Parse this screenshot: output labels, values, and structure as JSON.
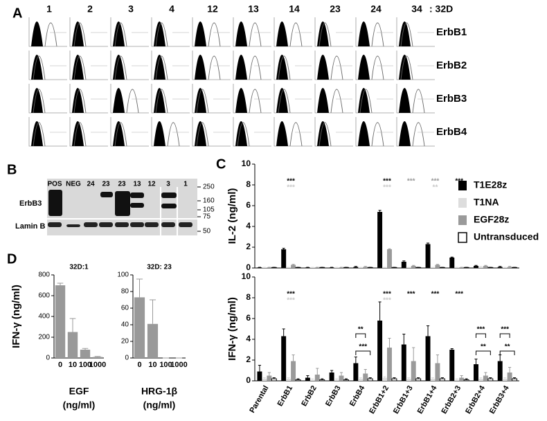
{
  "panel_labels": [
    "A",
    "B",
    "C",
    "D"
  ],
  "flow": {
    "columns": [
      "1",
      "2",
      "3",
      "4",
      "12",
      "13",
      "14",
      "23",
      "24",
      "34"
    ],
    "suffix": ": 32D",
    "rows": [
      "ErbB1",
      "ErbB2",
      "ErbB3",
      "ErbB4"
    ]
  },
  "blot": {
    "lanes": [
      "POS",
      "NEG",
      "24",
      "23",
      "23",
      "13",
      "12",
      "3",
      "1"
    ],
    "rows": [
      "ErbB3",
      "Lamin B"
    ],
    "markers": [
      250,
      160,
      105,
      75,
      50
    ]
  },
  "chart_data": [
    {
      "type": "bar",
      "ylabel": "IL-2 (ng/ml)",
      "ylim": [
        0,
        10
      ],
      "yticks": [
        0,
        2,
        4,
        6,
        8,
        10
      ],
      "series": [
        {
          "name": "T1E28z",
          "color": "#000000",
          "values": [
            0.05,
            1.8,
            0.05,
            0.05,
            0.1,
            5.4,
            0.6,
            2.3,
            1.0,
            0.2,
            0.1
          ],
          "errors": [
            0.02,
            0.1,
            0.02,
            0.02,
            0.05,
            0.15,
            0.08,
            0.1,
            0.05,
            0.05,
            0.05
          ]
        },
        {
          "name": "T1NA",
          "color": "#dddddd",
          "values": [
            0.05,
            0.05,
            0.05,
            0.05,
            0.05,
            0.05,
            0.05,
            0.05,
            0.05,
            0.1,
            0.05
          ],
          "errors": [
            0.02,
            0.02,
            0.02,
            0.02,
            0.02,
            0.02,
            0.02,
            0.02,
            0.02,
            0.05,
            0.02
          ]
        },
        {
          "name": "EGF28z",
          "color": "#9a9a9a",
          "values": [
            0.05,
            0.3,
            0.05,
            0.05,
            0.1,
            1.8,
            0.2,
            0.3,
            0.05,
            0.2,
            0.1
          ],
          "errors": [
            0.02,
            0.05,
            0.02,
            0.02,
            0.05,
            0.05,
            0.05,
            0.05,
            0.02,
            0.05,
            0.05
          ]
        },
        {
          "name": "Untransduced",
          "color": "#ffffff",
          "values": [
            0.05,
            0.05,
            0.05,
            0.05,
            0.05,
            0.05,
            0.05,
            0.05,
            0.05,
            0.05,
            0.05
          ],
          "errors": [
            0.02,
            0.02,
            0.02,
            0.02,
            0.02,
            0.02,
            0.02,
            0.02,
            0.02,
            0.02,
            0.02
          ]
        }
      ],
      "significance": [
        {
          "at": 1,
          "series": 0,
          "label": "***"
        },
        {
          "at": 1,
          "series": 1,
          "label": "***"
        },
        {
          "at": 5,
          "series": 0,
          "label": "***"
        },
        {
          "at": 5,
          "series": 1,
          "label": "***"
        },
        {
          "at": 6,
          "series": 2,
          "label": "***"
        },
        {
          "at": 7,
          "series": 2,
          "label": "***"
        },
        {
          "at": 7,
          "series": 1,
          "label": "**"
        },
        {
          "at": 8,
          "series": 0,
          "label": "***"
        }
      ]
    },
    {
      "type": "bar",
      "ylabel": "IFN-γ (ng/ml)",
      "ylim": [
        0,
        10
      ],
      "yticks": [
        0,
        2,
        4,
        6,
        8,
        10
      ],
      "categories": [
        "Parental",
        "ErbB1",
        "ErbB2",
        "ErbB3",
        "ErbB4",
        "ErbB1+2",
        "ErbB1+3",
        "ErbB1+4",
        "ErbB2+3",
        "ErbB2+4",
        "ErbB3+4"
      ],
      "series": [
        {
          "color": "#000000",
          "values": [
            0.9,
            4.3,
            0.3,
            0.8,
            1.7,
            5.8,
            3.5,
            4.3,
            3.0,
            1.6,
            1.9
          ],
          "errors": [
            0.6,
            0.7,
            0.2,
            0.2,
            0.6,
            1.8,
            1.0,
            1.0,
            0.1,
            0.5,
            0.6
          ]
        },
        {
          "color": "#dddddd",
          "values": [
            0.2,
            0.2,
            0.1,
            0.1,
            0.2,
            0.3,
            0.2,
            0.2,
            0.1,
            0.2,
            0.2
          ],
          "errors": [
            0.1,
            0.1,
            0.1,
            0.1,
            0.1,
            0.1,
            0.1,
            0.1,
            0.1,
            0.1,
            0.1
          ]
        },
        {
          "color": "#9a9a9a",
          "values": [
            0.5,
            1.9,
            0.6,
            0.5,
            0.7,
            3.2,
            1.9,
            1.7,
            0.3,
            0.5,
            0.8
          ],
          "errors": [
            0.3,
            0.6,
            0.6,
            0.3,
            0.4,
            0.9,
            1.3,
            0.8,
            0.2,
            0.3,
            0.5
          ]
        },
        {
          "color": "#ffffff",
          "values": [
            0.2,
            0.1,
            0.1,
            0.1,
            0.2,
            0.2,
            0.2,
            0.2,
            0.1,
            0.2,
            0.2
          ],
          "errors": [
            0.1,
            0.1,
            0.1,
            0.1,
            0.1,
            0.1,
            0.1,
            0.1,
            0.1,
            0.1,
            0.1
          ]
        }
      ],
      "significance": [
        {
          "at": 1,
          "series": 0,
          "label": "***"
        },
        {
          "at": 1,
          "series": 1,
          "label": "***"
        },
        {
          "at": 5,
          "series": 0,
          "label": "***"
        },
        {
          "at": 5,
          "series": 1,
          "label": "***"
        },
        {
          "at": 6,
          "series": 0,
          "label": "***"
        },
        {
          "at": 7,
          "series": 0,
          "label": "***"
        },
        {
          "at": 8,
          "series": 0,
          "label": "***"
        }
      ],
      "brackets": [
        {
          "at": 4,
          "label": "**"
        },
        {
          "at": 4,
          "label": "***"
        },
        {
          "at": 9,
          "label": "***"
        },
        {
          "at": 9,
          "label": "**"
        },
        {
          "at": 10,
          "label": "***"
        },
        {
          "at": 10,
          "label": "**"
        }
      ]
    },
    {
      "type": "bar",
      "title": "32D:1",
      "ylabel": "IFN-γ (ng/ml)",
      "xlabel": [
        "EGF",
        "(ng/ml)"
      ],
      "categories": [
        "0",
        "10",
        "100",
        "1000"
      ],
      "values": [
        700,
        250,
        80,
        10
      ],
      "errors": [
        20,
        130,
        12,
        5
      ],
      "color": "#999999",
      "ylim": [
        0,
        800
      ],
      "yticks": [
        0,
        200,
        400,
        600,
        800
      ]
    },
    {
      "type": "bar",
      "title": "32D: 23",
      "xlabel": [
        "HRG-1β",
        "(ng/ml)"
      ],
      "categories": [
        "0",
        "10",
        "100",
        "1000"
      ],
      "values": [
        73,
        41,
        0,
        0
      ],
      "errors": [
        22,
        29,
        0,
        0
      ],
      "color": "#999999",
      "ylim": [
        0,
        100
      ],
      "yticks": [
        0,
        20,
        40,
        60,
        80,
        100
      ]
    }
  ]
}
